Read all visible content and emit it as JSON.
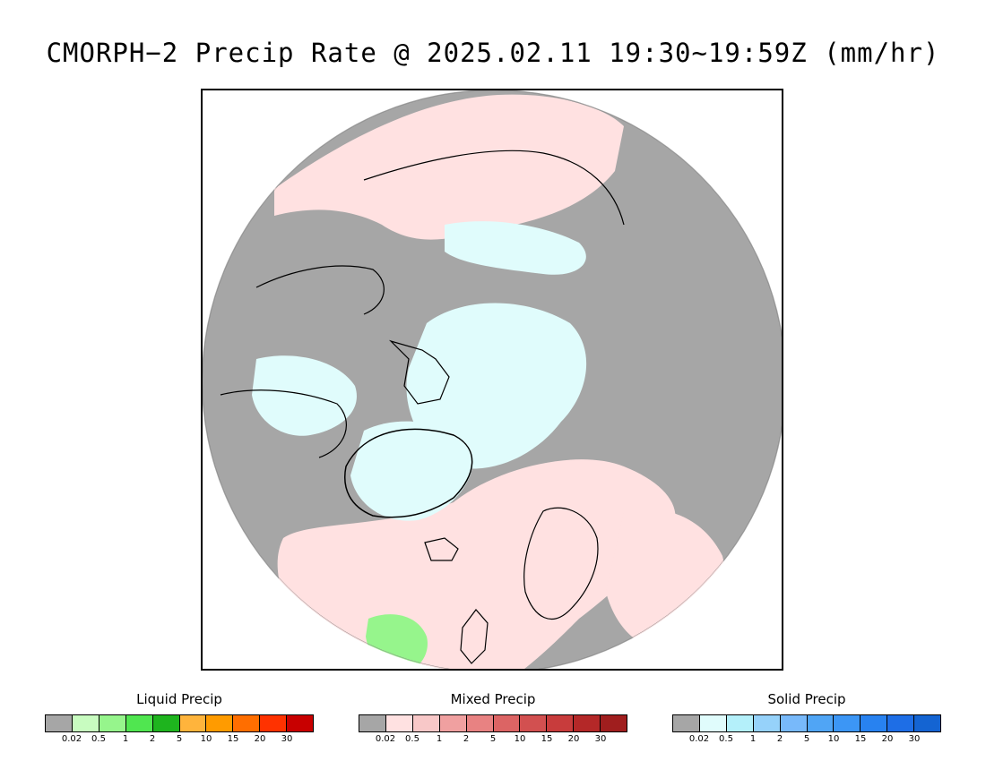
{
  "title": "CMORPH−2 Precip Rate @ 2025.02.11 19:30~19:59Z (mm/hr)",
  "colors": {
    "no_precip": "#a6a6a6",
    "mixed_light": "#ffe1e1",
    "solid_light": "#e0fcfc",
    "coastline": "#000000"
  },
  "legends": [
    {
      "title": "Liquid Precip",
      "colors": [
        "#a6a6a6",
        "#c8fcc0",
        "#96f58c",
        "#50e650",
        "#1eb41e",
        "#ffb43c",
        "#ff9b00",
        "#ff6e00",
        "#ff3200",
        "#c80000"
      ],
      "ticks": [
        "0.02",
        "0.5",
        "1",
        "2",
        "5",
        "10",
        "15",
        "20",
        "30"
      ]
    },
    {
      "title": "Mixed Precip",
      "colors": [
        "#a6a6a6",
        "#ffe1e1",
        "#f8c8c8",
        "#f0a0a0",
        "#e88282",
        "#dc6464",
        "#d25050",
        "#c83c3c",
        "#b42828",
        "#a01e1e"
      ],
      "ticks": [
        "0.02",
        "0.5",
        "1",
        "2",
        "5",
        "10",
        "15",
        "20",
        "30"
      ]
    },
    {
      "title": "Solid Precip",
      "colors": [
        "#a6a6a6",
        "#e0fcfc",
        "#b4f0fa",
        "#96d2fa",
        "#78b9fa",
        "#50a5f5",
        "#3c96f5",
        "#2882f0",
        "#1e6ee6",
        "#1464d2"
      ],
      "ticks": [
        "0.02",
        "0.5",
        "1",
        "2",
        "5",
        "10",
        "15",
        "20",
        "30"
      ]
    }
  ]
}
